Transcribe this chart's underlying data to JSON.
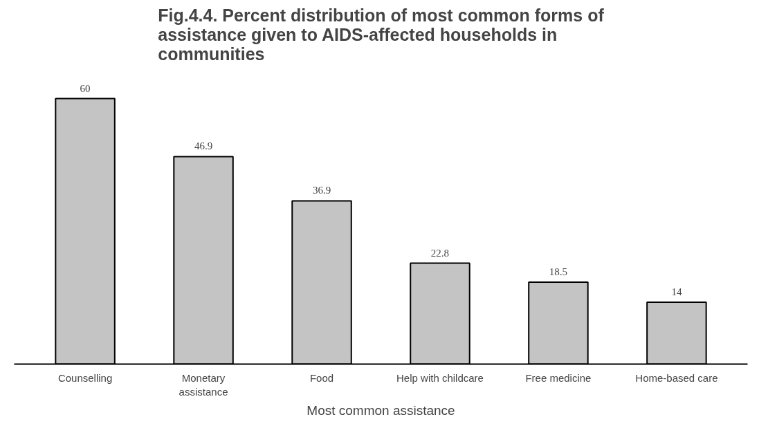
{
  "chart_data": {
    "type": "bar",
    "title": "Fig.4.4. Percent distribution of most common forms of\nassistance given to AIDS-affected households in\ncommunities",
    "xlabel": "Most common assistance",
    "categories": [
      "Counselling",
      "Monetary\nassistance",
      "Food",
      "Help with childcare",
      "Free medicine",
      "Home-based care"
    ],
    "values": [
      60,
      46.9,
      36.9,
      22.8,
      18.5,
      14
    ],
    "color": "#c4c4c4",
    "data_labels": true,
    "grid": false
  }
}
